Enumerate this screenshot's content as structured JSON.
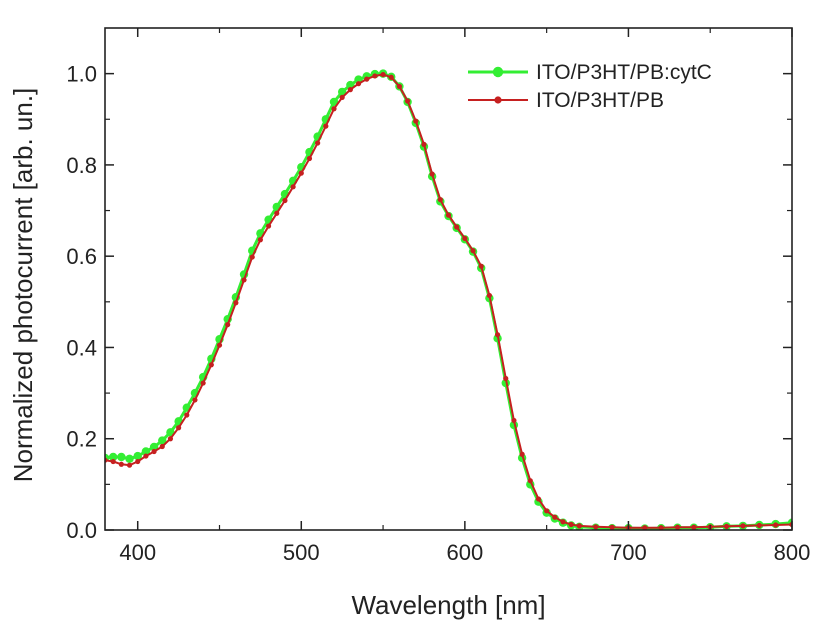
{
  "chart_data": {
    "type": "line",
    "xlabel": "Wavelength [nm]",
    "ylabel": "Normalized photocurrent [arb. un.]",
    "xlim": [
      380,
      800
    ],
    "ylim": [
      0.0,
      1.1
    ],
    "xticks": [
      400,
      500,
      600,
      700,
      800
    ],
    "yticks": [
      0.0,
      0.2,
      0.4,
      0.6,
      0.8,
      1.0
    ],
    "x_tick_labels": [
      "400",
      "500",
      "600",
      "700",
      "800"
    ],
    "y_tick_labels": [
      "0.0",
      "0.2",
      "0.4",
      "0.6",
      "0.8",
      "1.0"
    ],
    "grid": false,
    "legend_position": "top-right",
    "series": [
      {
        "name": "ITO/P3HT/PB:cytC",
        "color": "#33ee33",
        "marker_size": 4.2,
        "line_width": 3,
        "points": [
          [
            380,
            0.158
          ],
          [
            385,
            0.16
          ],
          [
            390,
            0.16
          ],
          [
            395,
            0.156
          ],
          [
            400,
            0.162
          ],
          [
            405,
            0.172
          ],
          [
            410,
            0.182
          ],
          [
            415,
            0.196
          ],
          [
            420,
            0.214
          ],
          [
            425,
            0.238
          ],
          [
            430,
            0.268
          ],
          [
            435,
            0.3
          ],
          [
            440,
            0.335
          ],
          [
            445,
            0.375
          ],
          [
            450,
            0.418
          ],
          [
            455,
            0.462
          ],
          [
            460,
            0.51
          ],
          [
            465,
            0.56
          ],
          [
            470,
            0.612
          ],
          [
            475,
            0.65
          ],
          [
            480,
            0.68
          ],
          [
            485,
            0.708
          ],
          [
            490,
            0.736
          ],
          [
            495,
            0.765
          ],
          [
            500,
            0.795
          ],
          [
            505,
            0.828
          ],
          [
            510,
            0.862
          ],
          [
            515,
            0.9
          ],
          [
            520,
            0.938
          ],
          [
            525,
            0.96
          ],
          [
            530,
            0.975
          ],
          [
            535,
            0.987
          ],
          [
            540,
            0.994
          ],
          [
            545,
            0.999
          ],
          [
            550,
            1.0
          ],
          [
            555,
            0.993
          ],
          [
            560,
            0.972
          ],
          [
            565,
            0.938
          ],
          [
            570,
            0.892
          ],
          [
            575,
            0.84
          ],
          [
            580,
            0.775
          ],
          [
            585,
            0.72
          ],
          [
            590,
            0.688
          ],
          [
            595,
            0.662
          ],
          [
            600,
            0.637
          ],
          [
            605,
            0.61
          ],
          [
            610,
            0.574
          ],
          [
            615,
            0.508
          ],
          [
            620,
            0.42
          ],
          [
            625,
            0.322
          ],
          [
            630,
            0.23
          ],
          [
            635,
            0.158
          ],
          [
            640,
            0.1
          ],
          [
            645,
            0.062
          ],
          [
            650,
            0.038
          ],
          [
            655,
            0.025
          ],
          [
            660,
            0.016
          ],
          [
            665,
            0.01
          ],
          [
            670,
            0.007
          ],
          [
            680,
            0.005
          ],
          [
            690,
            0.004
          ],
          [
            700,
            0.004
          ],
          [
            710,
            0.003
          ],
          [
            720,
            0.004
          ],
          [
            730,
            0.005
          ],
          [
            740,
            0.005
          ],
          [
            750,
            0.006
          ],
          [
            760,
            0.008
          ],
          [
            770,
            0.009
          ],
          [
            780,
            0.011
          ],
          [
            790,
            0.013
          ],
          [
            800,
            0.016
          ]
        ]
      },
      {
        "name": "ITO/P3HT/PB",
        "color": "#c62020",
        "marker_size": 2.6,
        "line_width": 2,
        "points": [
          [
            380,
            0.153
          ],
          [
            385,
            0.15
          ],
          [
            390,
            0.144
          ],
          [
            395,
            0.142
          ],
          [
            400,
            0.15
          ],
          [
            405,
            0.162
          ],
          [
            410,
            0.172
          ],
          [
            415,
            0.183
          ],
          [
            420,
            0.2
          ],
          [
            425,
            0.224
          ],
          [
            430,
            0.252
          ],
          [
            435,
            0.285
          ],
          [
            440,
            0.322
          ],
          [
            445,
            0.362
          ],
          [
            450,
            0.405
          ],
          [
            455,
            0.45
          ],
          [
            460,
            0.498
          ],
          [
            465,
            0.548
          ],
          [
            470,
            0.598
          ],
          [
            475,
            0.636
          ],
          [
            480,
            0.666
          ],
          [
            485,
            0.694
          ],
          [
            490,
            0.722
          ],
          [
            495,
            0.752
          ],
          [
            500,
            0.782
          ],
          [
            505,
            0.814
          ],
          [
            510,
            0.848
          ],
          [
            515,
            0.885
          ],
          [
            520,
            0.923
          ],
          [
            525,
            0.948
          ],
          [
            530,
            0.965
          ],
          [
            535,
            0.978
          ],
          [
            540,
            0.988
          ],
          [
            545,
            0.995
          ],
          [
            550,
            0.998
          ],
          [
            555,
            0.992
          ],
          [
            560,
            0.972
          ],
          [
            565,
            0.94
          ],
          [
            570,
            0.896
          ],
          [
            575,
            0.845
          ],
          [
            580,
            0.78
          ],
          [
            585,
            0.724
          ],
          [
            590,
            0.69
          ],
          [
            595,
            0.664
          ],
          [
            600,
            0.639
          ],
          [
            605,
            0.612
          ],
          [
            610,
            0.578
          ],
          [
            615,
            0.514
          ],
          [
            620,
            0.428
          ],
          [
            625,
            0.332
          ],
          [
            630,
            0.24
          ],
          [
            635,
            0.166
          ],
          [
            640,
            0.108
          ],
          [
            645,
            0.068
          ],
          [
            650,
            0.042
          ],
          [
            655,
            0.028
          ],
          [
            660,
            0.018
          ],
          [
            665,
            0.012
          ],
          [
            670,
            0.009
          ],
          [
            680,
            0.007
          ],
          [
            690,
            0.006
          ],
          [
            700,
            0.005
          ],
          [
            710,
            0.005
          ],
          [
            720,
            0.005
          ],
          [
            730,
            0.006
          ],
          [
            740,
            0.006
          ],
          [
            750,
            0.007
          ],
          [
            760,
            0.008
          ],
          [
            770,
            0.009
          ],
          [
            780,
            0.01
          ],
          [
            790,
            0.011
          ],
          [
            800,
            0.012
          ]
        ]
      }
    ]
  }
}
